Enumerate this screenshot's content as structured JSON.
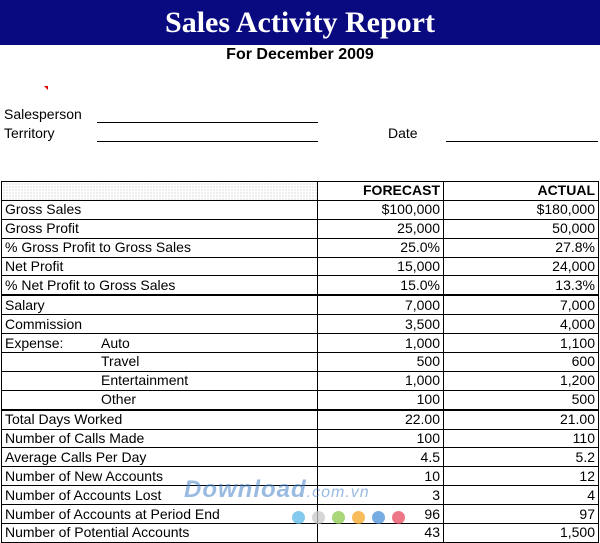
{
  "header": {
    "title": "Sales Activity Report",
    "subtitle": "For December 2009"
  },
  "fields": {
    "salesperson_label": "Salesperson",
    "territory_label": "Territory",
    "date_label": "Date"
  },
  "table": {
    "columns": [
      "FORECAST",
      "ACTUAL"
    ],
    "rows": [
      {
        "label": "Gross Sales",
        "sub": "",
        "forecast": "$100,000",
        "actual": "$180,000"
      },
      {
        "label": "Gross Profit",
        "sub": "",
        "forecast": "25,000",
        "actual": "50,000"
      },
      {
        "label": "% Gross Profit to Gross Sales",
        "sub": "",
        "forecast": "25.0%",
        "actual": "27.8%"
      },
      {
        "label": "Net Profit",
        "sub": "",
        "forecast": "15,000",
        "actual": "24,000"
      },
      {
        "label": "% Net Profit to Gross Sales",
        "sub": "",
        "forecast": "15.0%",
        "actual": "13.3%"
      },
      {
        "label": "Salary",
        "sub": "",
        "forecast": "7,000",
        "actual": "7,000"
      },
      {
        "label": "Commission",
        "sub": "",
        "forecast": "3,500",
        "actual": "4,000"
      },
      {
        "label": "Expense:",
        "sub": "Auto",
        "forecast": "1,000",
        "actual": "1,100"
      },
      {
        "label": "",
        "sub": "Travel",
        "forecast": "500",
        "actual": "600"
      },
      {
        "label": "",
        "sub": "Entertainment",
        "forecast": "1,000",
        "actual": "1,200"
      },
      {
        "label": "",
        "sub": "Other",
        "forecast": "100",
        "actual": "500"
      },
      {
        "label": "Total Days Worked",
        "sub": "",
        "forecast": "22.00",
        "actual": "21.00"
      },
      {
        "label": "Number of Calls Made",
        "sub": "",
        "forecast": "100",
        "actual": "110"
      },
      {
        "label": "Average Calls Per Day",
        "sub": "",
        "forecast": "4.5",
        "actual": "5.2"
      },
      {
        "label": "Number of New Accounts",
        "sub": "",
        "forecast": "10",
        "actual": "12"
      },
      {
        "label": "Number of Accounts Lost",
        "sub": "",
        "forecast": "3",
        "actual": "4"
      },
      {
        "label": "Number of Accounts at Period End",
        "sub": "",
        "forecast": "96",
        "actual": "97"
      },
      {
        "label": "Number of Potential Accounts",
        "sub": "",
        "forecast": "43",
        "actual": "1,500"
      }
    ]
  },
  "watermark": {
    "brand": "Download",
    "domain": ".com.vn",
    "dot_colors": [
      "#5bb8e8",
      "#c8c8c8",
      "#8cc84b",
      "#f5a623",
      "#4a90d9",
      "#e84a5f"
    ]
  }
}
